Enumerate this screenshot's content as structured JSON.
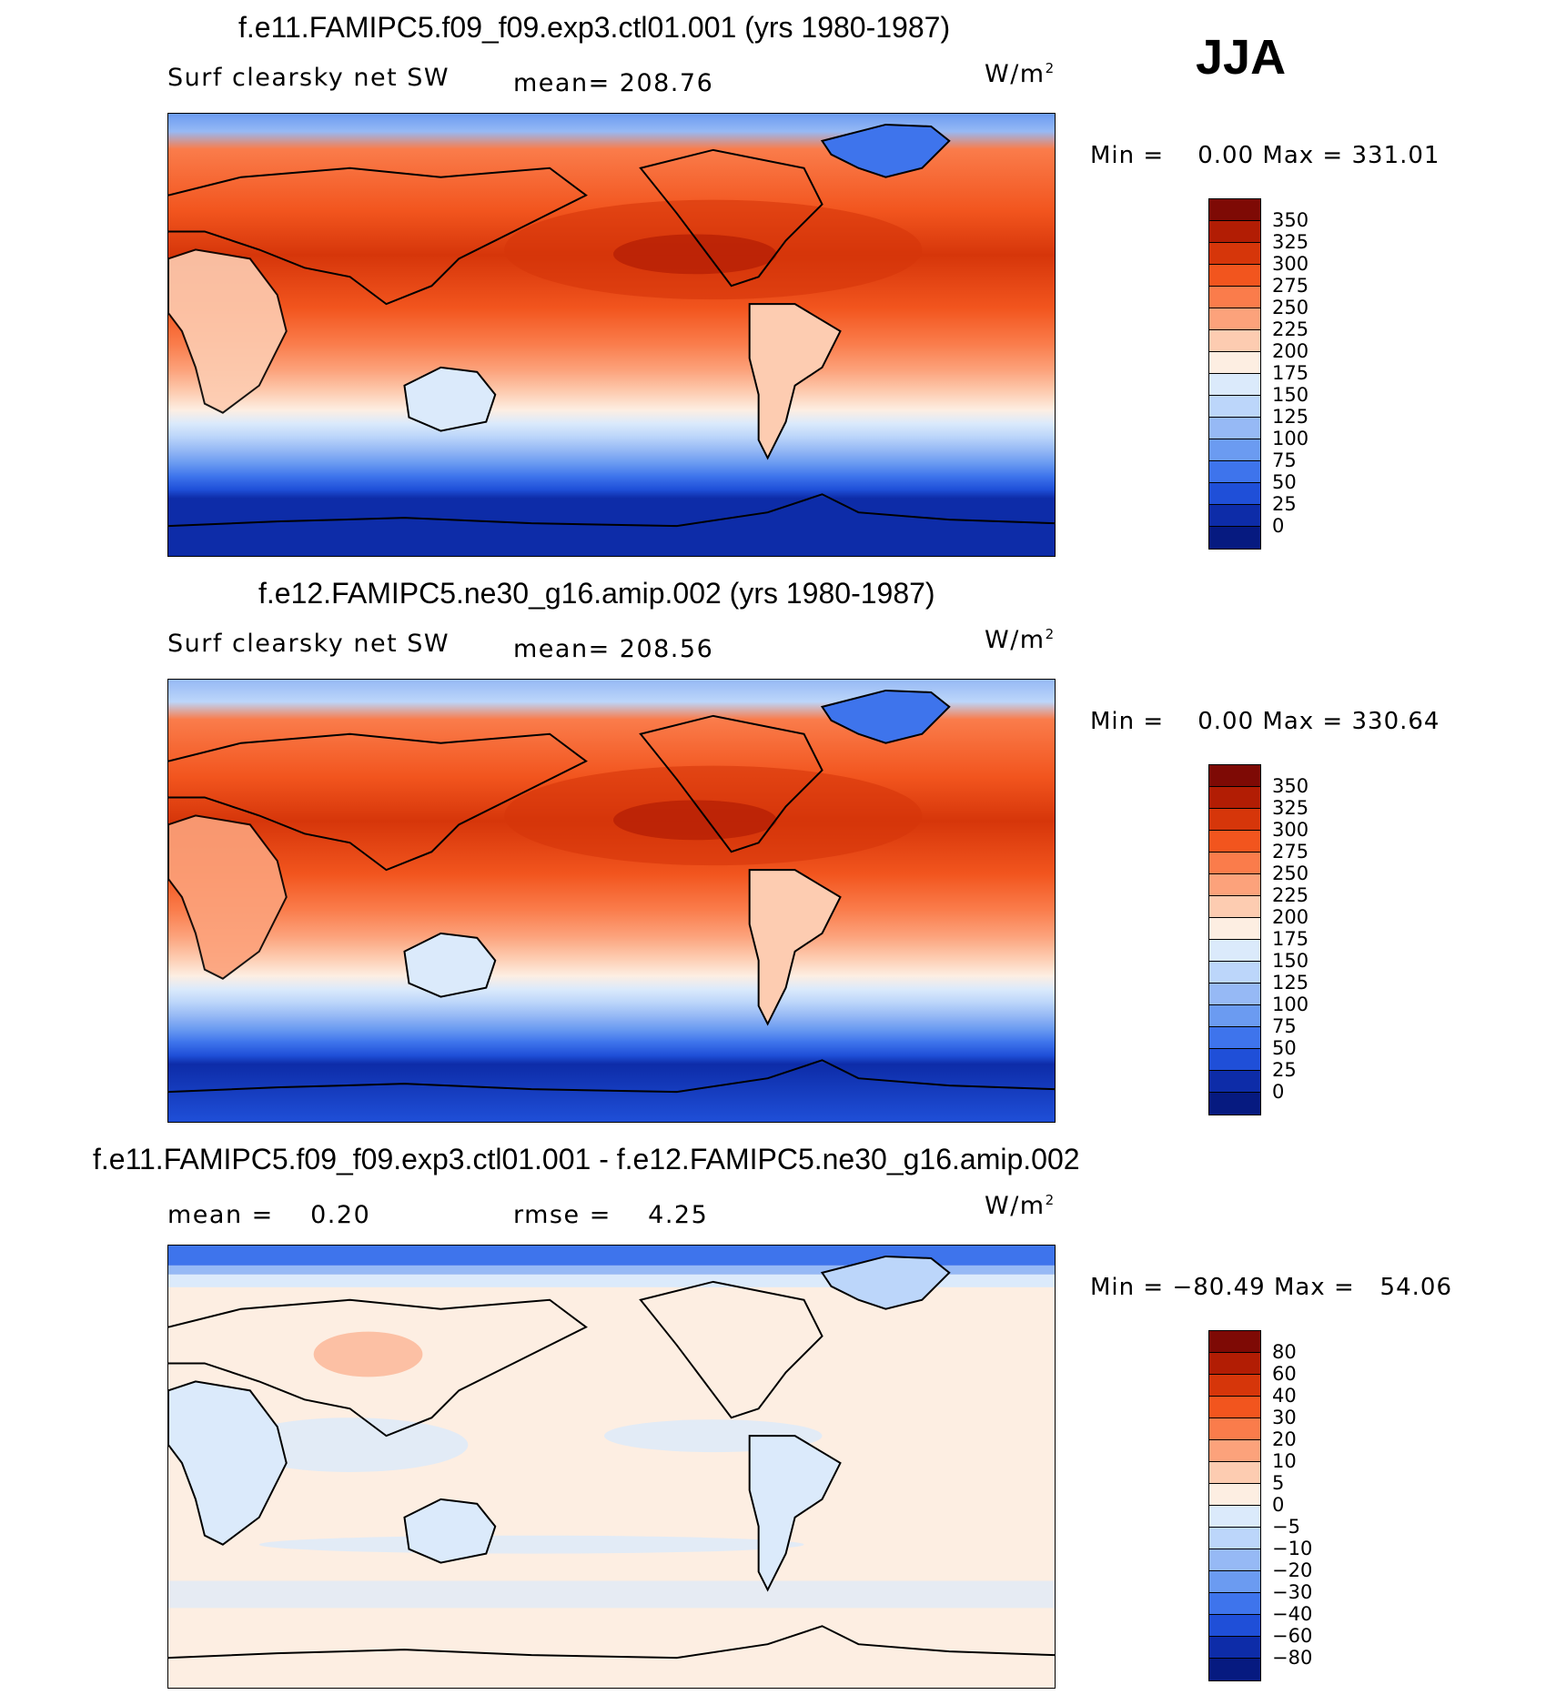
{
  "season": "JJA",
  "panels": [
    {
      "title": "f.e11.FAMIPC5.f09_f09.exp3.ctl01.001 (yrs 1980-1987)",
      "variable": "Surf clearsky net SW",
      "stat_text": "mean= 208.76",
      "units_base": "W/m",
      "units_exp": "2",
      "min_label": "Min =",
      "min_value": "0.00",
      "max_label": "Max =",
      "max_value": "331.01",
      "colorbar": {
        "labels": [
          "350",
          "325",
          "300",
          "275",
          "250",
          "225",
          "200",
          "175",
          "150",
          "125",
          "100",
          "75",
          "50",
          "25",
          "0"
        ],
        "colors": [
          "#7e0a05",
          "#b21d04",
          "#d6360a",
          "#f2551e",
          "#fa7c4b",
          "#fca27b",
          "#fdccb1",
          "#fdeee2",
          "#dbeafb",
          "#bcd6fa",
          "#96b9f5",
          "#6b9bf1",
          "#3e74ec",
          "#1f4fd8",
          "#0d2ca8",
          "#061a80"
        ]
      }
    },
    {
      "title": "f.e12.FAMIPC5.ne30_g16.amip.002 (yrs 1980-1987)",
      "variable": "Surf clearsky net SW",
      "stat_text": "mean= 208.56",
      "units_base": "W/m",
      "units_exp": "2",
      "min_label": "Min =",
      "min_value": "0.00",
      "max_label": "Max =",
      "max_value": "330.64",
      "colorbar": {
        "labels": [
          "350",
          "325",
          "300",
          "275",
          "250",
          "225",
          "200",
          "175",
          "150",
          "125",
          "100",
          "75",
          "50",
          "25",
          "0"
        ],
        "colors": [
          "#7e0a05",
          "#b21d04",
          "#d6360a",
          "#f2551e",
          "#fa7c4b",
          "#fca27b",
          "#fdccb1",
          "#fdeee2",
          "#dbeafb",
          "#bcd6fa",
          "#96b9f5",
          "#6b9bf1",
          "#3e74ec",
          "#1f4fd8",
          "#0d2ca8",
          "#061a80"
        ]
      }
    },
    {
      "title": "f.e11.FAMIPC5.f09_f09.exp3.ctl01.001 - f.e12.FAMIPC5.ne30_g16.amip.002",
      "mean_label": "mean =",
      "mean_value": "0.20",
      "rmse_label": "rmse =",
      "rmse_value": "4.25",
      "units_base": "W/m",
      "units_exp": "2",
      "min_label": "Min =",
      "min_value": "−80.49",
      "max_label": "Max =",
      "max_value": "54.06",
      "colorbar": {
        "labels": [
          "80",
          "60",
          "40",
          "30",
          "20",
          "10",
          "5",
          "0",
          "−5",
          "−10",
          "−20",
          "−30",
          "−40",
          "−60",
          "−80"
        ],
        "colors": [
          "#7e0a05",
          "#b21d04",
          "#d6360a",
          "#f2551e",
          "#fa7c4b",
          "#fca27b",
          "#fdccb1",
          "#fdeee2",
          "#dbeafb",
          "#bcd6fa",
          "#96b9f5",
          "#6b9bf1",
          "#3e74ec",
          "#1f4fd8",
          "#0d2ca8",
          "#061a80"
        ]
      }
    }
  ]
}
